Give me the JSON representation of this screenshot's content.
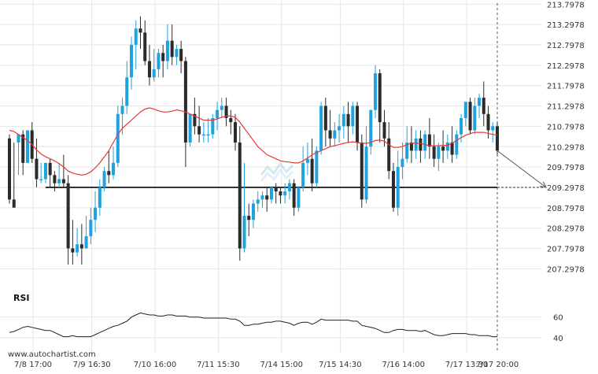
{
  "chart_data": {
    "type": "candlestick",
    "colors": {
      "bullish": "#1fa2dd",
      "bearish": "#2b2b2b",
      "moving_average": "#e53935",
      "support_line": "#333333",
      "grid": "#e6e6e6",
      "rsi_line": "#222222",
      "forecast_arrow": "#555555"
    },
    "y_axis": {
      "range": [
        206.9,
        213.9
      ],
      "tick_labels": [
        "213.7978",
        "213.2978",
        "212.7978",
        "212.2978",
        "211.7978",
        "211.2978",
        "210.7978",
        "210.2978",
        "209.7978",
        "209.2978",
        "208.7978",
        "208.2978",
        "207.7978",
        "207.2978"
      ],
      "tick_values": [
        213.7978,
        213.2978,
        212.7978,
        212.2978,
        211.7978,
        211.2978,
        210.7978,
        210.2978,
        209.7978,
        209.2978,
        208.7978,
        208.2978,
        207.7978,
        207.2978
      ]
    },
    "x_axis": {
      "tick_labels": [
        "7/8 17:00",
        "7/9 16:30",
        "7/10 16:00",
        "7/11 15:30",
        "7/14 15:00",
        "7/15 14:30",
        "7/16 14:00",
        "7/17 13:30",
        "7/17 20:00"
      ],
      "tick_index": [
        0,
        13,
        27,
        41,
        55,
        68,
        82,
        96,
        108
      ]
    },
    "support_level": 209.2978,
    "support_start_index": 8,
    "forecast_target": 209.2978,
    "candles": [
      [
        210.5,
        210.6,
        209.0,
        208.9
      ],
      [
        209.0,
        210.4,
        208.8,
        209.0
      ],
      [
        210.4,
        210.6,
        210.6,
        209.6
      ],
      [
        210.6,
        210.7,
        209.9,
        209.6
      ],
      [
        209.9,
        210.0,
        210.7,
        210.0
      ],
      [
        210.7,
        210.9,
        210.0,
        209.9
      ],
      [
        210.0,
        210.5,
        209.5,
        209.3
      ],
      [
        209.5,
        209.9,
        209.5,
        209.4
      ],
      [
        209.5,
        209.8,
        209.9,
        209.4
      ],
      [
        209.9,
        210.0,
        209.6,
        209.3
      ],
      [
        209.6,
        209.7,
        209.4,
        209.2
      ],
      [
        209.4,
        209.9,
        209.5,
        209.3
      ],
      [
        209.5,
        210.1,
        209.4,
        209.3
      ],
      [
        209.4,
        209.6,
        207.8,
        207.4
      ],
      [
        207.8,
        208.5,
        207.7,
        207.4
      ],
      [
        207.7,
        208.3,
        207.9,
        207.6
      ],
      [
        207.9,
        208.4,
        207.8,
        207.4
      ],
      [
        207.8,
        208.6,
        208.1,
        207.8
      ],
      [
        208.1,
        208.8,
        208.5,
        207.9
      ],
      [
        208.5,
        209.2,
        208.8,
        208.2
      ],
      [
        208.8,
        209.5,
        209.3,
        208.6
      ],
      [
        209.3,
        209.8,
        209.7,
        209.2
      ],
      [
        209.7,
        210.2,
        209.6,
        209.4
      ],
      [
        209.6,
        210.3,
        209.9,
        209.5
      ],
      [
        209.9,
        211.3,
        211.1,
        209.8
      ],
      [
        211.1,
        211.5,
        211.3,
        210.6
      ],
      [
        211.3,
        212.4,
        212.0,
        211.1
      ],
      [
        212.0,
        213.0,
        212.8,
        211.7
      ],
      [
        212.8,
        213.4,
        213.2,
        212.2
      ],
      [
        213.2,
        213.5,
        213.1,
        212.7
      ],
      [
        213.1,
        213.4,
        212.4,
        212.3
      ],
      [
        212.4,
        212.8,
        212.0,
        211.8
      ],
      [
        212.0,
        212.7,
        212.2,
        211.9
      ],
      [
        212.2,
        212.7,
        212.6,
        212.0
      ],
      [
        212.6,
        212.8,
        212.4,
        212.0
      ],
      [
        212.4,
        213.3,
        212.9,
        212.2
      ],
      [
        212.9,
        213.3,
        212.5,
        212.3
      ],
      [
        212.5,
        212.8,
        212.7,
        212.3
      ],
      [
        212.7,
        212.9,
        212.4,
        212.1
      ],
      [
        212.4,
        212.5,
        210.4,
        209.8
      ],
      [
        210.4,
        210.9,
        211.1,
        210.3
      ],
      [
        211.1,
        211.5,
        210.8,
        210.6
      ],
      [
        210.8,
        211.3,
        210.6,
        210.4
      ],
      [
        210.6,
        210.9,
        210.6,
        210.4
      ],
      [
        210.6,
        211.0,
        210.6,
        210.4
      ],
      [
        210.6,
        211.1,
        211.0,
        210.5
      ],
      [
        211.0,
        211.4,
        211.2,
        210.7
      ],
      [
        211.2,
        211.5,
        211.3,
        211.0
      ],
      [
        211.3,
        211.5,
        211.0,
        210.8
      ],
      [
        211.0,
        211.2,
        210.9,
        210.6
      ],
      [
        210.9,
        211.1,
        210.4,
        210.2
      ],
      [
        210.4,
        210.8,
        207.8,
        207.5
      ],
      [
        207.8,
        209.9,
        208.6,
        207.7
      ],
      [
        208.6,
        208.9,
        208.5,
        208.1
      ],
      [
        208.5,
        209.0,
        208.9,
        208.3
      ],
      [
        208.9,
        209.2,
        209.0,
        208.7
      ],
      [
        209.0,
        209.2,
        209.1,
        208.8
      ],
      [
        209.1,
        209.3,
        209.0,
        208.7
      ],
      [
        209.0,
        209.3,
        209.3,
        208.9
      ],
      [
        209.3,
        209.4,
        209.2,
        208.9
      ],
      [
        209.2,
        209.3,
        209.1,
        208.9
      ],
      [
        209.1,
        209.4,
        209.2,
        208.9
      ],
      [
        209.2,
        209.5,
        209.4,
        209.0
      ],
      [
        209.4,
        209.5,
        208.8,
        208.6
      ],
      [
        208.8,
        209.3,
        209.3,
        208.7
      ],
      [
        209.3,
        210.3,
        209.9,
        209.2
      ],
      [
        209.9,
        210.4,
        210.0,
        209.6
      ],
      [
        210.0,
        210.5,
        209.4,
        209.2
      ],
      [
        209.4,
        210.3,
        210.2,
        209.3
      ],
      [
        210.2,
        211.4,
        211.3,
        210.1
      ],
      [
        211.3,
        211.5,
        210.7,
        210.3
      ],
      [
        210.7,
        211.2,
        210.5,
        210.3
      ],
      [
        210.5,
        210.9,
        210.7,
        210.3
      ],
      [
        210.7,
        211.1,
        210.8,
        210.4
      ],
      [
        210.8,
        211.3,
        211.1,
        210.5
      ],
      [
        211.1,
        211.4,
        210.8,
        210.4
      ],
      [
        210.8,
        211.4,
        211.3,
        210.6
      ],
      [
        211.3,
        211.4,
        210.4,
        210.2
      ],
      [
        210.4,
        210.6,
        209.0,
        208.8
      ],
      [
        209.0,
        210.8,
        210.3,
        208.9
      ],
      [
        210.3,
        211.2,
        211.2,
        210.1
      ],
      [
        211.2,
        212.3,
        212.1,
        211.0
      ],
      [
        212.1,
        212.2,
        210.9,
        210.4
      ],
      [
        210.9,
        211.2,
        210.5,
        210.3
      ],
      [
        210.5,
        210.9,
        209.7,
        209.5
      ],
      [
        209.7,
        209.9,
        208.8,
        208.7
      ],
      [
        208.8,
        210.2,
        209.8,
        208.6
      ],
      [
        209.8,
        210.4,
        210.0,
        209.5
      ],
      [
        210.0,
        210.8,
        210.4,
        209.9
      ],
      [
        210.4,
        210.8,
        210.2,
        209.9
      ],
      [
        210.2,
        210.7,
        210.5,
        210.0
      ],
      [
        210.5,
        210.7,
        210.2,
        209.9
      ],
      [
        210.2,
        210.7,
        210.6,
        210.0
      ],
      [
        210.6,
        211.0,
        210.3,
        210.0
      ],
      [
        210.3,
        210.6,
        210.0,
        209.8
      ],
      [
        210.0,
        210.4,
        210.3,
        209.7
      ],
      [
        210.3,
        210.7,
        210.2,
        209.9
      ],
      [
        210.2,
        210.6,
        210.4,
        210.0
      ],
      [
        210.4,
        210.8,
        210.1,
        209.9
      ],
      [
        210.1,
        210.7,
        210.6,
        210.0
      ],
      [
        210.6,
        211.1,
        211.0,
        210.4
      ],
      [
        211.0,
        211.4,
        211.4,
        210.8
      ],
      [
        211.4,
        211.5,
        210.7,
        210.6
      ],
      [
        210.7,
        211.5,
        211.3,
        210.6
      ],
      [
        211.3,
        211.6,
        211.5,
        211.0
      ],
      [
        211.5,
        211.9,
        211.1,
        210.8
      ],
      [
        211.1,
        211.3,
        210.7,
        210.5
      ],
      [
        210.7,
        210.9,
        210.8,
        210.4
      ],
      [
        210.8,
        210.9,
        210.2,
        210.1
      ]
    ],
    "moving_average": [
      210.7,
      210.67,
      210.6,
      210.52,
      210.45,
      210.35,
      210.22,
      210.12,
      210.05,
      210.0,
      209.95,
      209.88,
      209.8,
      209.7,
      209.65,
      209.62,
      209.6,
      209.62,
      209.68,
      209.78,
      209.9,
      210.05,
      210.2,
      210.4,
      210.6,
      210.75,
      210.85,
      210.95,
      211.05,
      211.15,
      211.22,
      211.25,
      211.22,
      211.18,
      211.15,
      211.15,
      211.17,
      211.2,
      211.18,
      211.15,
      211.1,
      211.05,
      211.0,
      210.95,
      210.95,
      210.95,
      210.98,
      211.02,
      211.05,
      211.05,
      211.02,
      210.9,
      210.75,
      210.6,
      210.45,
      210.3,
      210.2,
      210.1,
      210.05,
      210.0,
      209.95,
      209.93,
      209.92,
      209.9,
      209.9,
      209.95,
      210.02,
      210.1,
      210.15,
      210.2,
      210.25,
      210.3,
      210.32,
      210.35,
      210.38,
      210.4,
      210.42,
      210.4,
      210.38,
      210.38,
      210.4,
      210.45,
      210.46,
      210.43,
      210.35,
      210.28,
      210.28,
      210.3,
      210.35,
      210.38,
      210.38,
      210.38,
      210.35,
      210.32,
      210.32,
      210.32,
      210.33,
      210.33,
      210.38,
      210.45,
      210.52,
      210.58,
      210.62,
      210.65,
      210.65,
      210.65,
      210.62,
      210.6,
      210.58
    ],
    "rsi": {
      "label": "RSI",
      "tick_labels": [
        "60",
        "40"
      ],
      "tick_values": [
        60,
        40
      ],
      "range": [
        30,
        75
      ],
      "values": [
        45,
        46,
        48,
        50,
        51,
        50,
        49,
        48,
        47,
        47,
        45,
        43,
        41,
        41,
        42,
        41,
        41,
        41,
        41,
        43,
        45,
        47,
        49,
        51,
        52,
        54,
        56,
        60,
        62,
        64,
        63,
        62,
        62,
        61,
        61,
        62,
        62,
        61,
        61,
        61,
        60,
        60,
        60,
        59,
        59,
        59,
        59,
        59,
        59,
        58,
        58,
        56,
        52,
        52,
        53,
        53,
        54,
        55,
        55,
        56,
        56,
        55,
        54,
        52,
        54,
        55,
        55,
        53,
        55,
        58,
        57,
        57,
        57,
        57,
        57,
        57,
        56,
        56,
        52,
        51,
        50,
        49,
        47,
        45,
        45,
        47,
        48,
        48,
        47,
        47,
        47,
        46,
        47,
        45,
        43,
        42,
        42,
        43,
        44,
        44,
        44,
        44,
        43,
        43,
        42,
        42,
        42,
        41,
        41
      ]
    }
  },
  "footer": {
    "source_url": "www.autochartist.com"
  }
}
